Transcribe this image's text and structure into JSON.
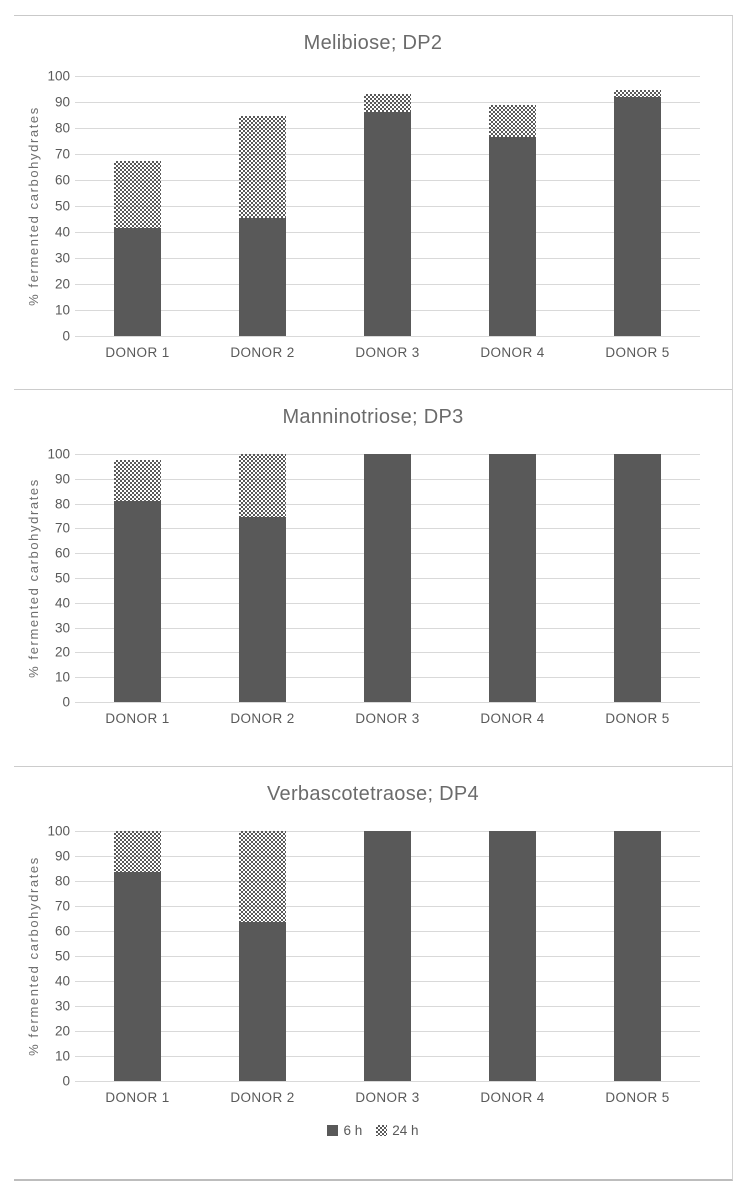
{
  "figure_type": "three stacked-bar charts, in-vitro fermentation by donor",
  "colors": {
    "bar_6h_solid": "#595959",
    "bar_24h_hatch_foreground": "#595959",
    "gridline": "#d9d9d9",
    "text": "#595959",
    "title_text": "#6b6b6b",
    "panel_border": "#c9c9c9",
    "background": "#ffffff"
  },
  "y_axis": {
    "label": "% fermented carbohydrates",
    "ticks": [
      0,
      10,
      20,
      30,
      40,
      50,
      60,
      70,
      80,
      90,
      100
    ]
  },
  "legend": {
    "items": [
      {
        "label": "6 h",
        "swatch": "solid-dark-gray-square"
      },
      {
        "label": "24 h",
        "swatch": "checkerboard-hatch-square"
      }
    ],
    "position": "bottom-center (below third chart only)"
  },
  "chart_data": [
    {
      "type": "bar",
      "stacked": true,
      "title": "Melibiose; DP2",
      "categories": [
        "DONOR 1",
        "DONOR 2",
        "DONOR 3",
        "DONOR 4",
        "DONOR 5"
      ],
      "series": [
        {
          "name": "6 h",
          "values": [
            41.5,
            45.5,
            86,
            76.5,
            92
          ]
        },
        {
          "name": "24 h",
          "values": [
            26,
            39,
            7,
            12.5,
            2.5
          ]
        }
      ],
      "stack_totals": [
        67.5,
        84.5,
        93,
        89,
        94.5
      ],
      "xlabel": "",
      "ylabel": "% fermented carbohydrates",
      "ylim": [
        0,
        100
      ],
      "grid": "horizontal",
      "legend_visible": false
    },
    {
      "type": "bar",
      "stacked": true,
      "title": "Manninotriose; DP3",
      "categories": [
        "DONOR 1",
        "DONOR 2",
        "DONOR 3",
        "DONOR 4",
        "DONOR 5"
      ],
      "series": [
        {
          "name": "6 h",
          "values": [
            81,
            74.5,
            100,
            100,
            100
          ]
        },
        {
          "name": "24 h",
          "values": [
            16.5,
            25.5,
            0,
            0,
            0
          ]
        }
      ],
      "stack_totals": [
        97.5,
        100,
        100,
        100,
        100
      ],
      "xlabel": "",
      "ylabel": "% fermented carbohydrates",
      "ylim": [
        0,
        100
      ],
      "grid": "horizontal",
      "legend_visible": false
    },
    {
      "type": "bar",
      "stacked": true,
      "title": "Verbascotetraose; DP4",
      "categories": [
        "DONOR 1",
        "DONOR 2",
        "DONOR 3",
        "DONOR 4",
        "DONOR 5"
      ],
      "series": [
        {
          "name": "6 h",
          "values": [
            83.5,
            63.5,
            100,
            100,
            100
          ]
        },
        {
          "name": "24 h",
          "values": [
            16.5,
            36.5,
            0,
            0,
            0
          ]
        }
      ],
      "stack_totals": [
        100,
        100,
        100,
        100,
        100
      ],
      "xlabel": "",
      "ylabel": "% fermented carbohydrates",
      "ylim": [
        0,
        100
      ],
      "grid": "horizontal",
      "legend_visible": true
    }
  ]
}
